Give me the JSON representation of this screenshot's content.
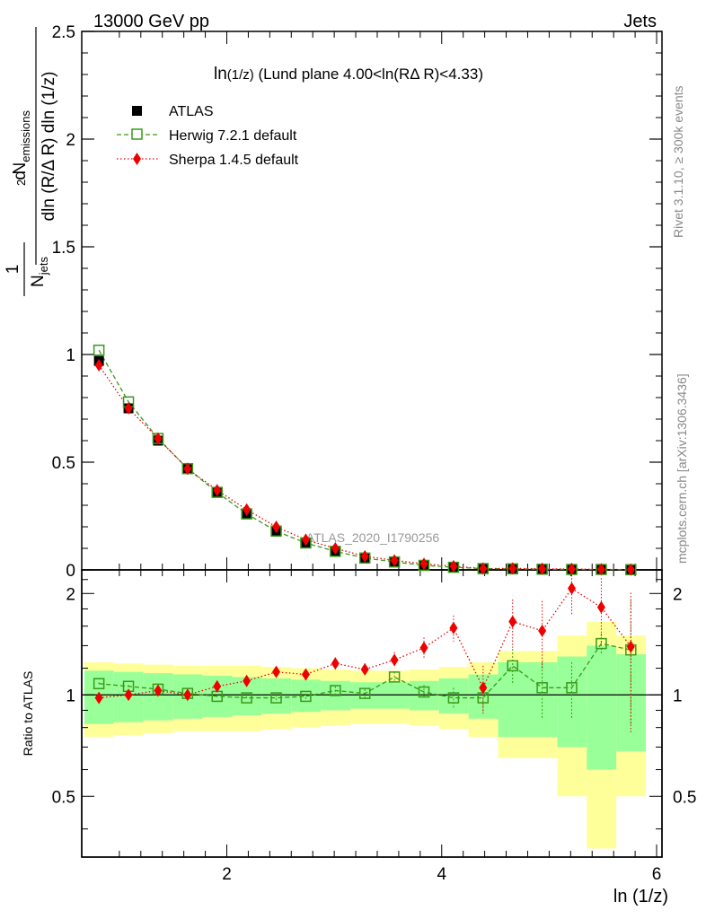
{
  "header": {
    "energy": "13000 GeV pp",
    "category": "Jets",
    "plot_title": "ln(1/z) (Lund plane 4.00<ln(RΔ R)<4.33)",
    "watermark": "ATLAS_2020_I1790256",
    "side_rivet": "Rivet 3.1.10, ≥ 300k events",
    "side_mcplots": "mcplots.cern.ch [arXiv:1306.3436]"
  },
  "axes": {
    "ylabel_main": "1/N_jets d² N_emissions / dln (R/Δ R) dln (1/z)",
    "ylabel_ratio": "Ratio to ATLAS",
    "xlabel": "ln (1/z)"
  },
  "legend": [
    {
      "name": "ATLAS",
      "color": "#000000"
    },
    {
      "name": "Herwig 7.2.1 default",
      "color": "#3a9a1a"
    },
    {
      "name": "Sherpa 1.4.5 default",
      "color": "#ee0000"
    }
  ],
  "colors": {
    "data": "#000000",
    "herwig": "#3a9a1a",
    "sherpa": "#ee0000",
    "band_inner": "#99ff99",
    "band_outer": "#ffff99"
  },
  "chart_data": {
    "type": "line",
    "xlim": [
      0.65,
      6.05
    ],
    "ylim": [
      0,
      2.5
    ],
    "ratio_ylim": [
      0.33,
      2.35
    ],
    "xticks": [
      2,
      4,
      6
    ],
    "yticks": [
      0,
      0.5,
      1,
      1.5,
      2,
      2.5
    ],
    "ratio_yticks": [
      0.5,
      1,
      2
    ],
    "x": [
      0.81,
      1.085,
      1.36,
      1.635,
      1.91,
      2.185,
      2.46,
      2.735,
      3.01,
      3.285,
      3.56,
      3.835,
      4.11,
      4.385,
      4.66,
      4.935,
      5.21,
      5.485,
      5.76
    ],
    "bin_edges": [
      0.675,
      0.95,
      1.225,
      1.5,
      1.775,
      2.05,
      2.325,
      2.6,
      2.875,
      3.15,
      3.425,
      3.7,
      3.975,
      4.25,
      4.525,
      4.8,
      5.075,
      5.35,
      5.625,
      5.9
    ],
    "series": [
      {
        "name": "ATLAS",
        "values": [
          0.97,
          0.75,
          0.6,
          0.47,
          0.36,
          0.26,
          0.18,
          0.125,
          0.085,
          0.055,
          0.035,
          0.02,
          0.012,
          0.006,
          0.004,
          0.003,
          0.002,
          0.0015,
          0.001
        ]
      },
      {
        "name": "Herwig 7.2.1 default",
        "values": [
          1.02,
          0.78,
          0.61,
          0.47,
          0.36,
          0.26,
          0.18,
          0.125,
          0.086,
          0.055,
          0.037,
          0.021,
          0.012,
          0.006,
          0.005,
          0.003,
          0.002,
          0.002,
          0.001
        ]
      },
      {
        "name": "Sherpa 1.4.5 default",
        "values": [
          0.95,
          0.75,
          0.61,
          0.47,
          0.37,
          0.28,
          0.2,
          0.14,
          0.1,
          0.063,
          0.044,
          0.028,
          0.017,
          0.006,
          0.007,
          0.005,
          0.004,
          0.0025,
          0.0014
        ]
      }
    ],
    "ratio": {
      "herwig": [
        1.08,
        1.06,
        1.04,
        1.01,
        0.99,
        0.98,
        0.98,
        0.99,
        1.03,
        1.01,
        1.13,
        1.02,
        0.98,
        0.98,
        1.22,
        1.05,
        1.05,
        1.42,
        1.36
      ],
      "sherpa": [
        0.98,
        1.0,
        1.03,
        1.0,
        1.06,
        1.1,
        1.17,
        1.15,
        1.24,
        1.19,
        1.27,
        1.38,
        1.58,
        1.05,
        1.65,
        1.55,
        2.07,
        1.82,
        1.39
      ],
      "sherpa_err": [
        0.02,
        0.02,
        0.02,
        0.02,
        0.02,
        0.02,
        0.03,
        0.04,
        0.05,
        0.05,
        0.07,
        0.1,
        0.14,
        0.17,
        0.27,
        0.35,
        0.35,
        0.4,
        0.62
      ],
      "herwig_err": [
        0.01,
        0.01,
        0.01,
        0.01,
        0.01,
        0.01,
        0.02,
        0.02,
        0.03,
        0.03,
        0.04,
        0.05,
        0.07,
        0.1,
        0.15,
        0.2,
        0.2,
        0.1,
        0.55
      ],
      "band_inner": [
        0.18,
        0.17,
        0.16,
        0.15,
        0.14,
        0.13,
        0.12,
        0.11,
        0.1,
        0.09,
        0.09,
        0.1,
        0.12,
        0.15,
        0.25,
        0.25,
        0.3,
        0.4,
        0.32
      ],
      "band_outer": [
        0.25,
        0.24,
        0.23,
        0.22,
        0.22,
        0.22,
        0.21,
        0.2,
        0.19,
        0.18,
        0.18,
        0.19,
        0.21,
        0.25,
        0.35,
        0.35,
        0.5,
        0.65,
        0.5
      ]
    }
  }
}
